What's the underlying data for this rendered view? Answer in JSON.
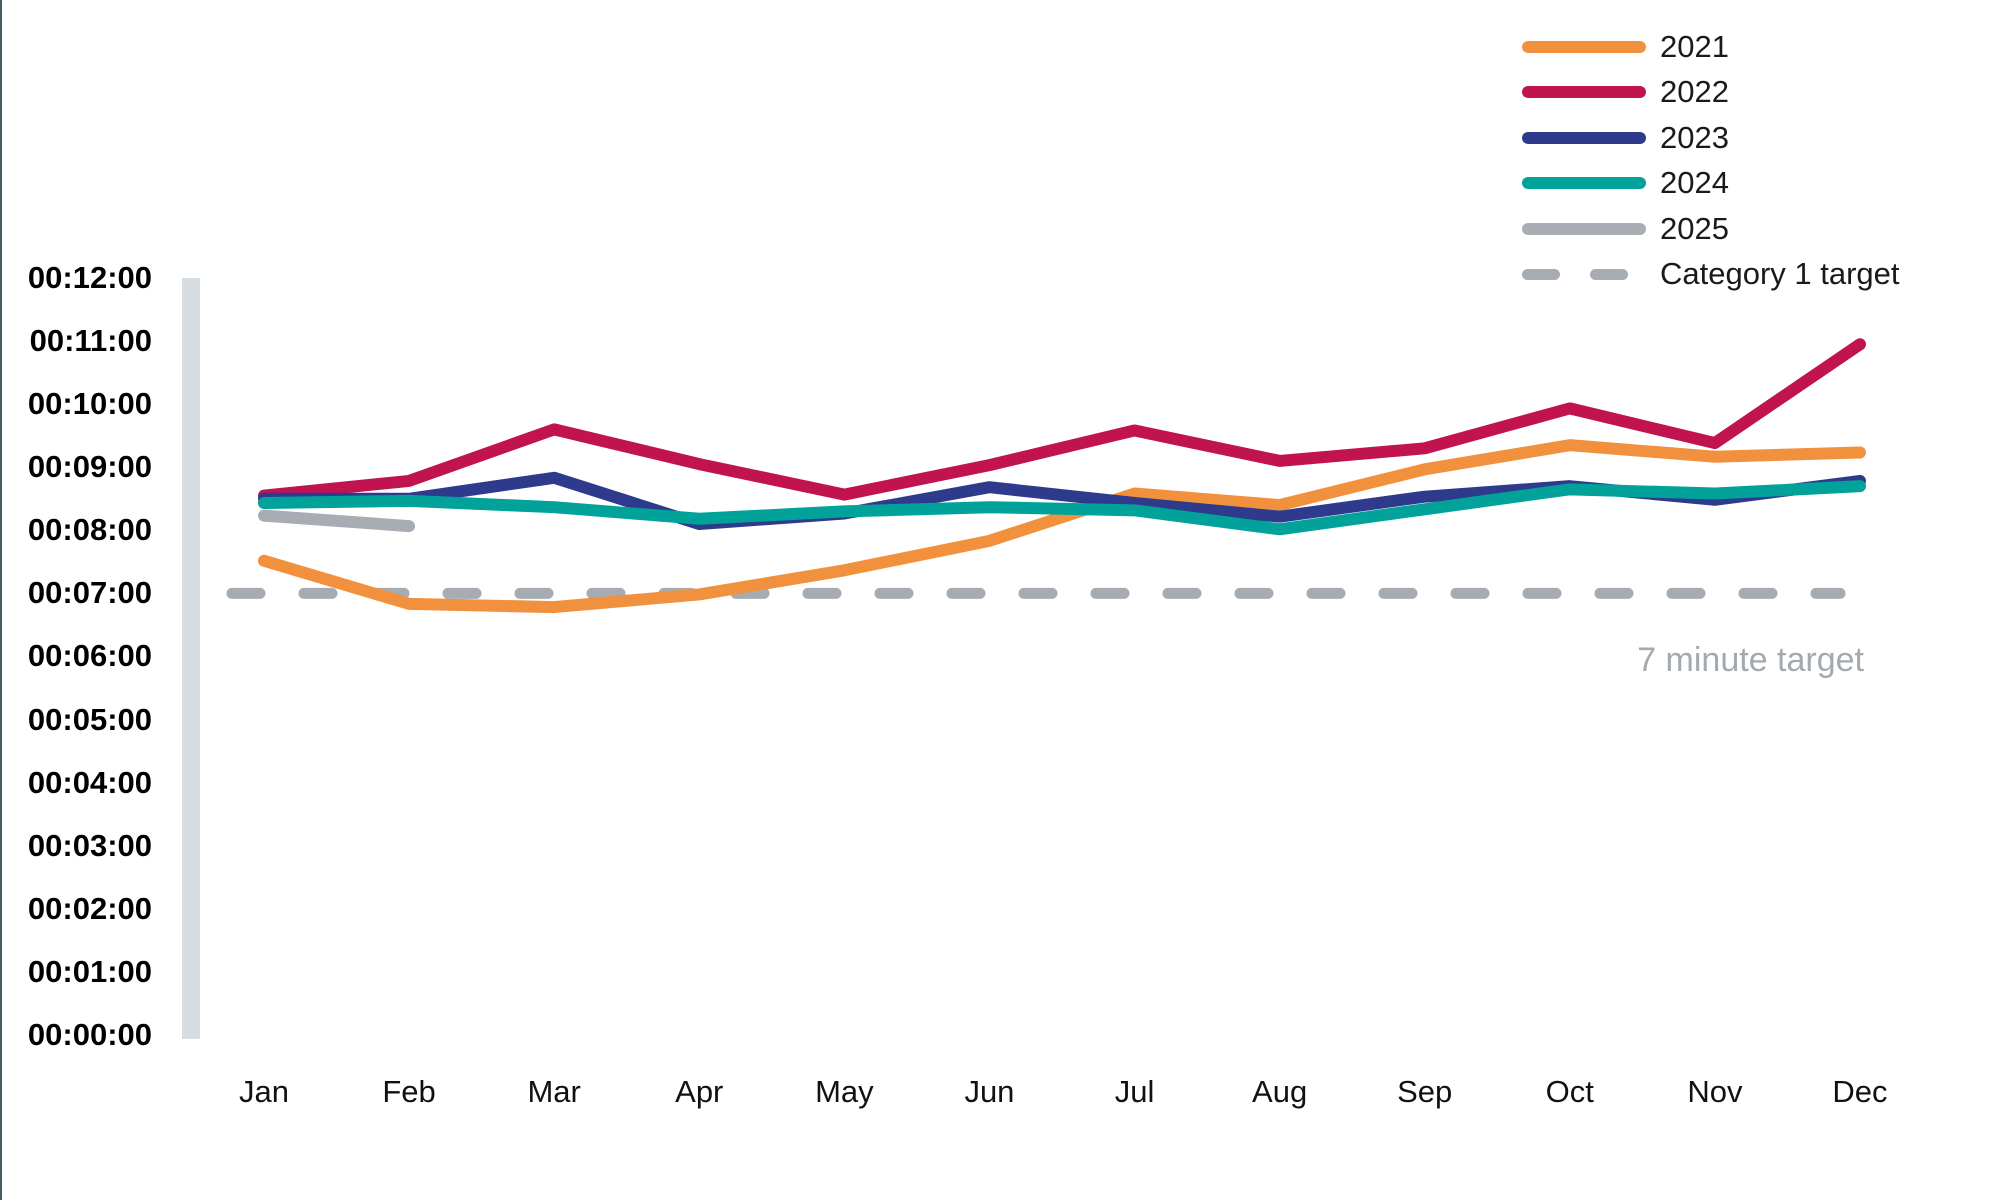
{
  "page": {
    "background": "#FFFFFF",
    "left_border_color": "#4A5B63"
  },
  "chart_data": {
    "type": "line",
    "title": "",
    "x_categories": [
      "Jan",
      "Feb",
      "Mar",
      "Apr",
      "May",
      "Jun",
      "Jul",
      "Aug",
      "Sep",
      "Oct",
      "Nov",
      "Dec"
    ],
    "y_axis": {
      "format": "HH:MM:SS",
      "min": "00:00:00",
      "max": "00:12:00",
      "tick_labels": [
        "00:12:00",
        "00:11:00",
        "00:10:00",
        "00:09:00",
        "00:08:00",
        "00:07:00",
        "00:06:00",
        "00:05:00",
        "00:04:00",
        "00:03:00",
        "00:02:00",
        "00:01:00",
        "00:00:00"
      ],
      "band_color": "#D7DCE1"
    },
    "grid": false,
    "legend_position": "top-right",
    "series": [
      {
        "name": "2021",
        "color": "#F2913D",
        "values_mmss": [
          "7:31",
          "6:50",
          "6:47",
          "6:59",
          "7:22",
          "7:50",
          "8:35",
          "8:24",
          "8:58",
          "9:21",
          "9:10",
          "9:14"
        ]
      },
      {
        "name": "2022",
        "color": "#C1134F",
        "values_mmss": [
          "8:33",
          "8:47",
          "9:36",
          "9:03",
          "8:34",
          "9:02",
          "9:35",
          "9:06",
          "9:18",
          "9:56",
          "9:23",
          "10:57"
        ]
      },
      {
        "name": "2023",
        "color": "#2E3A8C",
        "values_mmss": [
          "8:30",
          "8:30",
          "8:50",
          "8:06",
          "8:16",
          "8:41",
          "8:26",
          "8:13",
          "8:32",
          "8:42",
          "8:29",
          "8:47"
        ]
      },
      {
        "name": "2024",
        "color": "#00A29A",
        "values_mmss": [
          "8:26",
          "8:28",
          "8:22",
          "8:11",
          "8:18",
          "8:22",
          "8:19",
          "8:01",
          "8:20",
          "8:39",
          "8:35",
          "8:42"
        ]
      },
      {
        "name": "2025",
        "color": "#A7ADB3",
        "values_mmss": [
          "8:14",
          "8:04"
        ]
      }
    ],
    "target_line": {
      "label": "Category 1 target",
      "value_mmss": "7:00",
      "color": "#A6ACB2",
      "style": "dashed",
      "annotation": "7 minute target"
    }
  }
}
